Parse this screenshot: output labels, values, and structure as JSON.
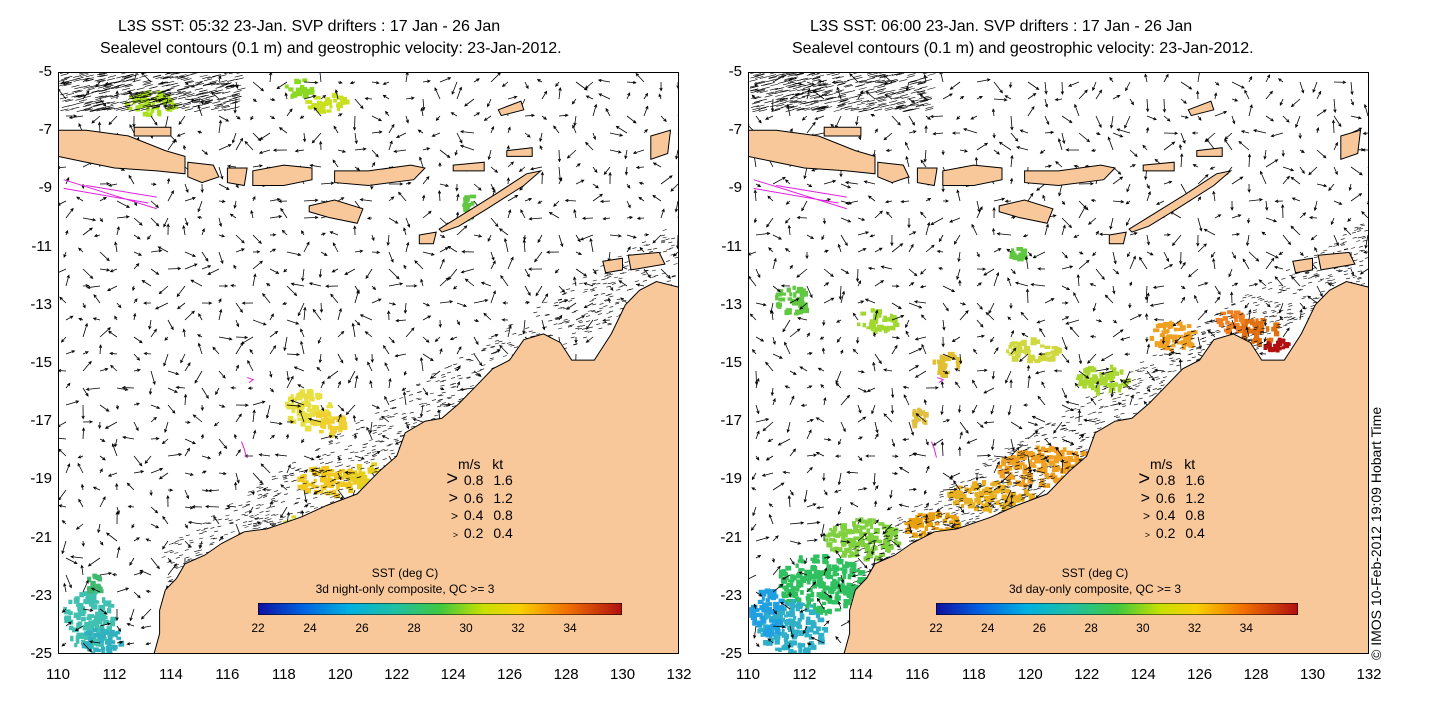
{
  "panels": [
    {
      "title_line1": "L3S SST: 05:32 23-Jan. SVP drifters : 17 Jan - 26 Jan",
      "title_line2": "Sealevel contours (0.1 m) and geostrophic velocity: 23-Jan-2012.",
      "sst_title": "SST (deg C)",
      "sst_subtitle": "3d night-only composite, QC >= 3"
    },
    {
      "title_line1": "L3S SST: 06:00 23-Jan. SVP drifters : 17 Jan - 26 Jan",
      "title_line2": "Sealevel contours (0.1 m) and geostrophic velocity: 23-Jan-2012.",
      "sst_title": "SST (deg C)",
      "sst_subtitle": "3d day-only composite, QC >= 3"
    }
  ],
  "y_ticks": [
    "-5",
    "-7",
    "-9",
    "-11",
    "-13",
    "-15",
    "-17",
    "-19",
    "-21",
    "-23",
    "-25"
  ],
  "x_ticks": [
    "110",
    "112",
    "114",
    "116",
    "118",
    "120",
    "122",
    "124",
    "126",
    "128",
    "130",
    "132"
  ],
  "velocity_legend": {
    "header_ms": "m/s",
    "header_kt": "kt",
    "rows": [
      {
        "ms": "0.8",
        "kt": "1.6"
      },
      {
        "ms": "0.6",
        "kt": "1.2"
      },
      {
        "ms": "0.4",
        "kt": "0.8"
      },
      {
        "ms": "0.2",
        "kt": "0.4"
      }
    ]
  },
  "colorbar_ticks": [
    "22",
    "24",
    "26",
    "28",
    "30",
    "32",
    "34"
  ],
  "credit": "© IMOS 10-Feb-2012 19:09 Hobart Time",
  "colors": {
    "land": "#f9c89a",
    "sea": "#ffffff",
    "drifter": "#e020e0"
  }
}
